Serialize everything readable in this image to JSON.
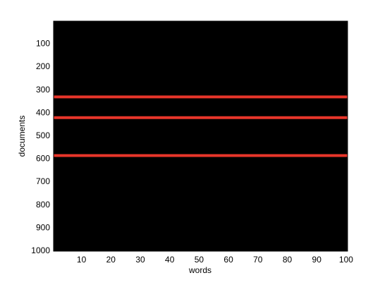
{
  "chart_data": {
    "type": "heatmap",
    "xlabel": "words",
    "ylabel": "documents",
    "xlim": [
      0.5,
      100.5
    ],
    "ylim": [
      1000.5,
      0.5
    ],
    "xticks": [
      10,
      20,
      30,
      40,
      50,
      60,
      70,
      80,
      90,
      100
    ],
    "yticks": [
      100,
      200,
      300,
      400,
      500,
      600,
      700,
      800,
      900,
      1000
    ],
    "background_color": "#000000",
    "hlines": [
      330,
      420,
      585
    ],
    "hline_color": "#e8352a"
  }
}
